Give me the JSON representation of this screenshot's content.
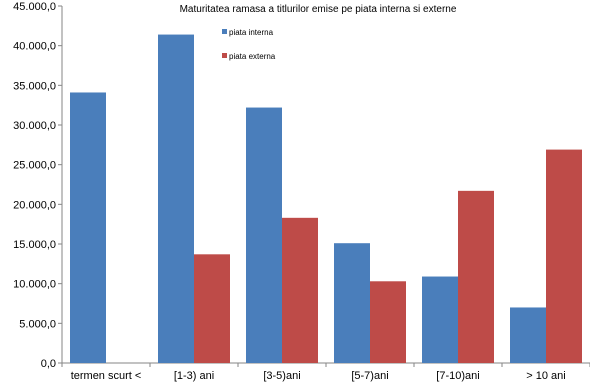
{
  "chart_data": {
    "type": "bar",
    "title": "Maturitatea ramasa a titlurilor emise pe piata interna si externe",
    "xlabel": "",
    "ylabel": "",
    "categories": [
      "termen scurt <",
      "[1-3) ani",
      "[3-5)ani",
      "[5-7)ani",
      "[7-10)ani",
      "> 10 ani"
    ],
    "series": [
      {
        "name": "piata interna",
        "color": "#4a7ebb",
        "values": [
          34100,
          41400,
          32200,
          15100,
          10900,
          7000
        ]
      },
      {
        "name": "piata externa",
        "color": "#be4b48",
        "values": [
          0,
          13700,
          18300,
          10300,
          21700,
          26900
        ]
      }
    ],
    "ylim": [
      0,
      45000
    ],
    "y_ticks": [
      0,
      5000,
      10000,
      15000,
      20000,
      25000,
      30000,
      35000,
      40000,
      45000
    ],
    "y_tick_labels": [
      "0,0",
      "5.000,0",
      "10.000,0",
      "15.000,0",
      "20.000,0",
      "25.000,0",
      "30.000,0",
      "35.000,0",
      "40.000,0",
      "45.000,0"
    ],
    "grid": false,
    "legend_position": "top-center"
  }
}
